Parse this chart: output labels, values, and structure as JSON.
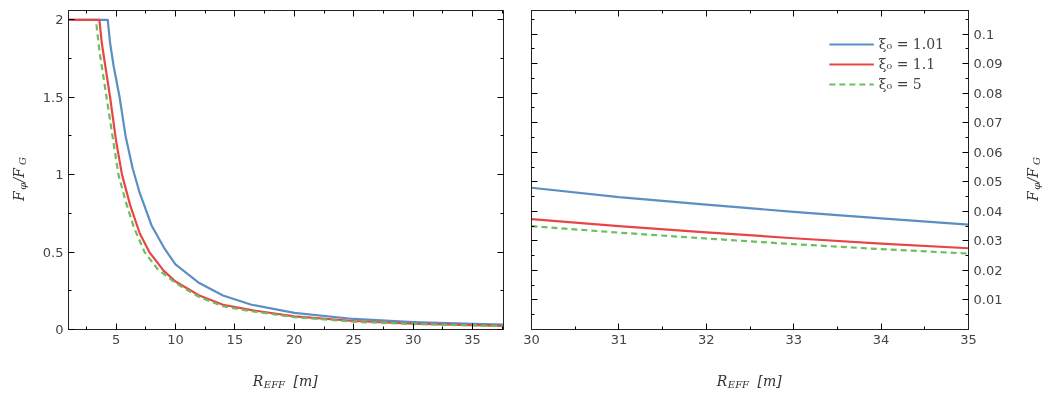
{
  "chart_data": [
    {
      "type": "line",
      "xlabel": "R$_{EFF}$ [m]",
      "ylabel": "F$_{φ}$/F$_{G}$",
      "xlim": [
        1,
        37.6
      ],
      "ylim": [
        0,
        2.06
      ],
      "xticks": [
        5,
        10,
        15,
        20,
        25,
        30,
        35
      ],
      "yticks": [
        0,
        0.5,
        1,
        1.5,
        2
      ],
      "legend": false,
      "grid": false,
      "tick_labels": "xy",
      "series": [
        {
          "color": "#5b8fc4",
          "line_style": "solid",
          "x": [
            1,
            4.3,
            4.5,
            4.8,
            5.3,
            5.8,
            6.4,
            7,
            8,
            9.1,
            10,
            12,
            14,
            16.4,
            20,
            25,
            30,
            35,
            37.6
          ],
          "values": [
            2,
            2,
            1.85,
            1.7,
            1.5,
            1.25,
            1.04,
            0.88,
            0.67,
            0.52,
            0.42,
            0.3,
            0.22,
            0.16,
            0.107,
            0.068,
            0.048,
            0.036,
            0.031
          ]
        },
        {
          "color": "#e84545",
          "line_style": "solid",
          "x": [
            1,
            3.6,
            3.8,
            4.1,
            4.5,
            5,
            5.5,
            6.2,
            7,
            7.8,
            9,
            10,
            12,
            14,
            16.4,
            20,
            25,
            30,
            35,
            37.6
          ],
          "values": [
            2,
            2,
            1.85,
            1.7,
            1.5,
            1.22,
            1.0,
            0.8,
            0.62,
            0.5,
            0.38,
            0.31,
            0.22,
            0.16,
            0.125,
            0.085,
            0.055,
            0.037,
            0.028,
            0.024
          ]
        },
        {
          "color": "#6abf5e",
          "line_style": "dashed",
          "x": [
            3.35,
            3.6,
            3.9,
            4.2,
            4.6,
            5.2,
            5.8,
            6.5,
            7.4,
            8.5,
            10,
            12,
            14,
            16.4,
            20,
            25,
            30,
            35,
            37.6
          ],
          "values": [
            1.97,
            1.8,
            1.65,
            1.5,
            1.3,
            1.0,
            0.83,
            0.66,
            0.5,
            0.39,
            0.3,
            0.21,
            0.15,
            0.118,
            0.08,
            0.05,
            0.035,
            0.026,
            0.022
          ]
        }
      ]
    },
    {
      "type": "line",
      "xlabel": "R$_{EFF}$ [m]",
      "y2label": "F$_{φ}$/F$_{G}$",
      "xlim": [
        30,
        35
      ],
      "y2lim": [
        0,
        0.108
      ],
      "xticks": [
        30,
        31,
        32,
        33,
        34,
        35
      ],
      "y2ticks": [
        0.01,
        0.02,
        0.03,
        0.04,
        0.05,
        0.06,
        0.07,
        0.08,
        0.09,
        0.1
      ],
      "legend": "top right",
      "grid": false,
      "tick_labels": "xy2",
      "series": [
        {
          "name": "ξ₀ = 1.01",
          "color": "#5b8fc4",
          "line_style": "solid",
          "axis": "y2",
          "x": [
            30,
            31,
            32,
            33,
            34,
            35
          ],
          "values": [
            0.048,
            0.0448,
            0.0423,
            0.0398,
            0.0376,
            0.0355
          ]
        },
        {
          "name": "ξ₀ = 1.1",
          "color": "#e84545",
          "line_style": "solid",
          "axis": "y2",
          "x": [
            30,
            31,
            32,
            33,
            34,
            35
          ],
          "values": [
            0.0374,
            0.035,
            0.0329,
            0.0309,
            0.0291,
            0.0275
          ]
        },
        {
          "name": "ξ₀ = 5",
          "color": "#6abf5e",
          "line_style": "dashed",
          "axis": "y2",
          "x": [
            30,
            31,
            32,
            33,
            34,
            35
          ],
          "values": [
            0.035,
            0.0328,
            0.0308,
            0.0289,
            0.0272,
            0.0257
          ]
        }
      ]
    }
  ]
}
